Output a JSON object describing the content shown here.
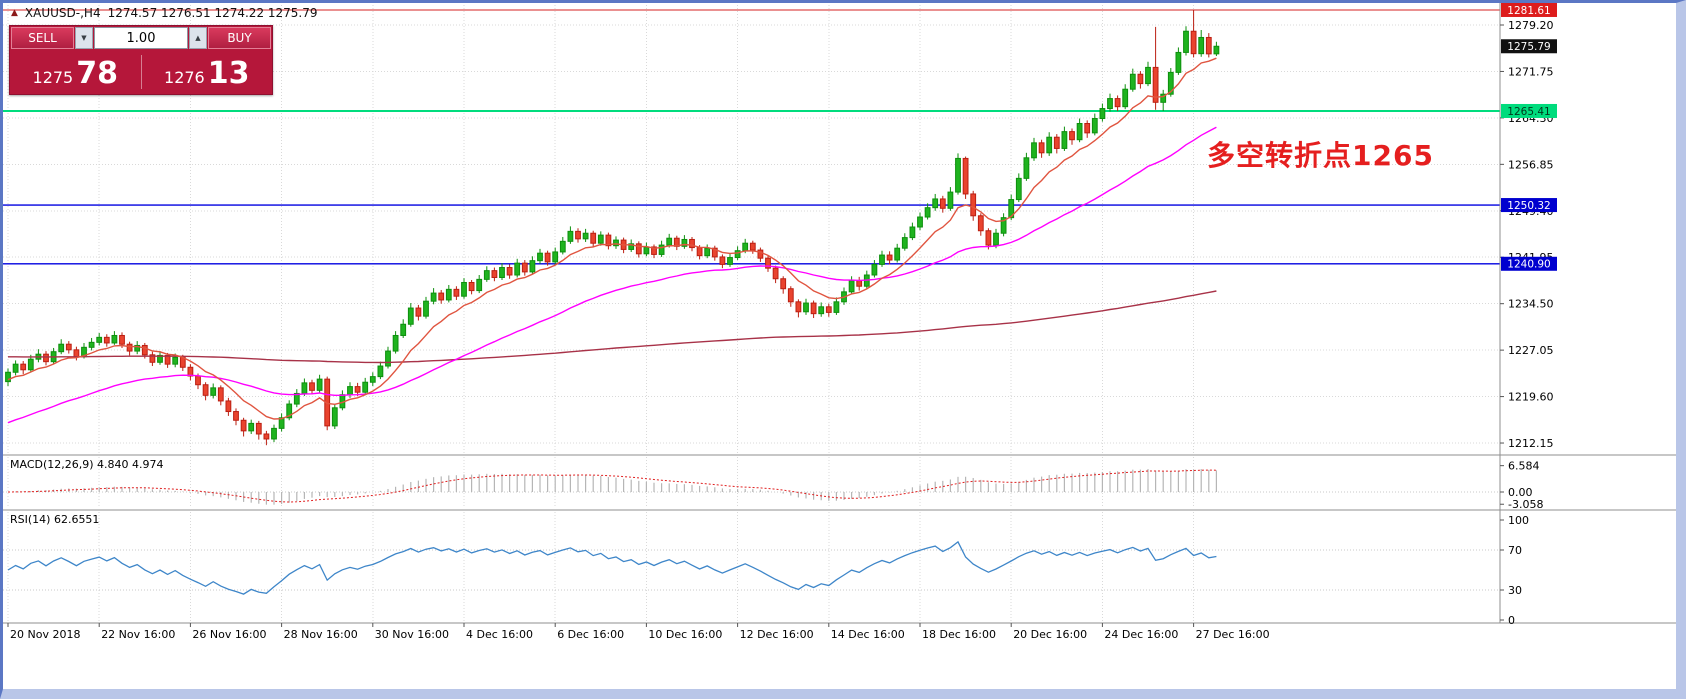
{
  "header": {
    "symbol_timeframe": "XAUUSD-,H4",
    "ohlc": "1274.57 1276.51 1274.22 1275.79"
  },
  "trade_panel": {
    "sell_label": "SELL",
    "buy_label": "BUY",
    "lot_value": "1.00",
    "spinner_down": "▼",
    "spinner_up": "▲",
    "sell_price_big": "1275",
    "sell_price_pips": "78",
    "buy_price_big": "1276",
    "buy_price_pips": "13",
    "bg_color": "#b5173a"
  },
  "annotation": {
    "text": "多空转折点1265",
    "color": "#e51f1f"
  },
  "price_axis": [
    "1279.20",
    "1271.75",
    "1264.30",
    "1256.85",
    "1249.40",
    "1241.95",
    "1234.50",
    "1227.05",
    "1219.60",
    "1212.15"
  ],
  "time_axis": [
    "20 Nov 2018",
    "22 Nov 16:00",
    "26 Nov 16:00",
    "28 Nov 16:00",
    "30 Nov 16:00",
    "4 Dec 16:00",
    "6 Dec 16:00",
    "10 Dec 16:00",
    "12 Dec 16:00",
    "14 Dec 16:00",
    "18 Dec 16:00",
    "20 Dec 16:00",
    "24 Dec 16:00",
    "27 Dec 16:00"
  ],
  "price_tags": [
    {
      "label": "1281.61",
      "price": 1281.61,
      "bg": "#dd1c1c",
      "fg": "#ffffff"
    },
    {
      "label": "1275.79",
      "price": 1275.79,
      "bg": "#111111",
      "fg": "#ffffff"
    },
    {
      "label": "1265.41",
      "price": 1265.41,
      "bg": "#00dc7d",
      "fg": "#00391d"
    },
    {
      "label": "1250.32",
      "price": 1250.32,
      "bg": "#0000cf",
      "fg": "#ffffff"
    },
    {
      "label": "1240.90",
      "price": 1240.9,
      "bg": "#0000cf",
      "fg": "#ffffff"
    }
  ],
  "macd_panel": {
    "label": "MACD(12,26,9) 4.840 4.974",
    "axis": [
      "6.584",
      "0.00",
      "-3.058"
    ]
  },
  "rsi_panel": {
    "label": "RSI(14) 62.6551",
    "axis": [
      "100",
      "70",
      "30",
      "0"
    ]
  },
  "chart_data": {
    "type": "candlestick",
    "symbol": "XAUUSD-",
    "timeframe": "H4",
    "current_bar": {
      "open": 1274.57,
      "high": 1276.51,
      "low": 1274.22,
      "close": 1275.79
    },
    "levels": [
      {
        "price": 1281.61,
        "color": "#d42020",
        "width": 1
      },
      {
        "price": 1265.41,
        "color": "#00dc7d",
        "width": 2
      },
      {
        "price": 1250.32,
        "color": "#0000e0",
        "width": 1.4
      },
      {
        "price": 1240.9,
        "color": "#0000e0",
        "width": 1.4
      }
    ],
    "moving_averages": [
      {
        "period": 9,
        "color": "#e05540",
        "seed": 1222
      },
      {
        "period": 40,
        "color": "#ff00ff",
        "seed": 1215
      },
      {
        "period": 350,
        "color": "#a83248",
        "seed": 1226
      }
    ],
    "macd": {
      "fast": 12,
      "slow": 26,
      "signal": 9,
      "value": 4.84,
      "signal_value": 4.974,
      "axis_max": 6.584,
      "axis_min": -3.058
    },
    "rsi": {
      "period": 14,
      "value": 62.6551,
      "levels": [
        70,
        30
      ]
    },
    "colors": {
      "up": "#0d8f0d",
      "up_fill": "#1fb31f",
      "down": "#bb1f12",
      "down_fill": "#e9432e",
      "grid": "#d9d9d9",
      "macd_hist": "#b6b6b6",
      "macd_signal": "#e02020",
      "rsi_line": "#3e86c9"
    },
    "y_range": [
      1209.5,
      1282.5
    ],
    "candles": [
      [
        1222.0,
        1224.1,
        1221.3,
        1223.5
      ],
      [
        1223.5,
        1225.4,
        1223.0,
        1224.8
      ],
      [
        1224.8,
        1225.3,
        1223.2,
        1223.9
      ],
      [
        1223.9,
        1226.3,
        1223.5,
        1225.6
      ],
      [
        1225.6,
        1227.2,
        1225.1,
        1226.4
      ],
      [
        1226.4,
        1226.9,
        1224.6,
        1225.2
      ],
      [
        1225.2,
        1227.4,
        1224.9,
        1226.8
      ],
      [
        1226.8,
        1228.8,
        1226.4,
        1228.0
      ],
      [
        1228.0,
        1228.5,
        1226.5,
        1227.1
      ],
      [
        1227.1,
        1227.6,
        1225.4,
        1226.0
      ],
      [
        1226.0,
        1228.2,
        1225.7,
        1227.5
      ],
      [
        1227.5,
        1229.0,
        1227.0,
        1228.3
      ],
      [
        1228.3,
        1229.8,
        1227.8,
        1229.1
      ],
      [
        1229.1,
        1229.6,
        1227.6,
        1228.2
      ],
      [
        1228.2,
        1230.1,
        1227.9,
        1229.4
      ],
      [
        1229.4,
        1229.9,
        1227.4,
        1228.0
      ],
      [
        1228.0,
        1228.4,
        1226.2,
        1226.9
      ],
      [
        1226.9,
        1228.5,
        1226.4,
        1227.8
      ],
      [
        1227.8,
        1228.2,
        1225.7,
        1226.3
      ],
      [
        1226.3,
        1226.8,
        1224.5,
        1225.1
      ],
      [
        1225.1,
        1226.9,
        1224.7,
        1226.2
      ],
      [
        1226.2,
        1226.6,
        1224.2,
        1224.8
      ],
      [
        1224.8,
        1226.5,
        1224.3,
        1225.9
      ],
      [
        1225.9,
        1226.3,
        1223.7,
        1224.3
      ],
      [
        1224.3,
        1224.8,
        1222.2,
        1222.9
      ],
      [
        1222.9,
        1223.3,
        1220.8,
        1221.5
      ],
      [
        1221.5,
        1221.9,
        1219.0,
        1219.8
      ],
      [
        1219.8,
        1221.7,
        1219.3,
        1221.0
      ],
      [
        1221.0,
        1221.4,
        1218.2,
        1218.9
      ],
      [
        1218.9,
        1219.4,
        1216.5,
        1217.2
      ],
      [
        1217.2,
        1217.7,
        1215.0,
        1215.8
      ],
      [
        1215.8,
        1216.2,
        1213.2,
        1214.1
      ],
      [
        1214.1,
        1215.9,
        1213.6,
        1215.3
      ],
      [
        1215.3,
        1215.7,
        1212.7,
        1213.6
      ],
      [
        1213.6,
        1214.1,
        1211.8,
        1212.8
      ],
      [
        1212.8,
        1215.1,
        1212.3,
        1214.5
      ],
      [
        1214.5,
        1216.9,
        1214.0,
        1216.2
      ],
      [
        1216.2,
        1219.0,
        1215.8,
        1218.4
      ],
      [
        1218.4,
        1220.8,
        1217.9,
        1220.1
      ],
      [
        1220.1,
        1222.5,
        1219.7,
        1221.8
      ],
      [
        1221.8,
        1222.3,
        1220.0,
        1220.6
      ],
      [
        1220.6,
        1223.1,
        1220.2,
        1222.4
      ],
      [
        1222.4,
        1222.8,
        1214.2,
        1214.9
      ],
      [
        1214.9,
        1218.4,
        1214.4,
        1217.8
      ],
      [
        1217.8,
        1220.6,
        1217.4,
        1219.9
      ],
      [
        1219.9,
        1221.9,
        1219.4,
        1221.2
      ],
      [
        1221.2,
        1221.8,
        1219.7,
        1220.3
      ],
      [
        1220.3,
        1222.6,
        1219.9,
        1221.9
      ],
      [
        1221.9,
        1223.5,
        1221.3,
        1222.8
      ],
      [
        1222.8,
        1225.2,
        1222.4,
        1224.5
      ],
      [
        1224.5,
        1227.6,
        1224.1,
        1226.9
      ],
      [
        1226.9,
        1230.1,
        1226.5,
        1229.4
      ],
      [
        1229.4,
        1232.0,
        1229.0,
        1231.2
      ],
      [
        1231.2,
        1234.6,
        1230.8,
        1233.8
      ],
      [
        1233.8,
        1234.3,
        1231.8,
        1232.5
      ],
      [
        1232.5,
        1235.6,
        1232.1,
        1234.9
      ],
      [
        1234.9,
        1237.0,
        1234.4,
        1236.2
      ],
      [
        1236.2,
        1236.7,
        1234.5,
        1235.1
      ],
      [
        1235.1,
        1237.5,
        1234.7,
        1236.8
      ],
      [
        1236.8,
        1237.3,
        1235.1,
        1235.7
      ],
      [
        1235.7,
        1238.6,
        1235.3,
        1237.9
      ],
      [
        1237.9,
        1238.3,
        1236.0,
        1236.6
      ],
      [
        1236.6,
        1239.1,
        1236.2,
        1238.4
      ],
      [
        1238.4,
        1240.5,
        1238.0,
        1239.8
      ],
      [
        1239.8,
        1240.3,
        1238.1,
        1238.7
      ],
      [
        1238.7,
        1241.0,
        1238.3,
        1240.3
      ],
      [
        1240.3,
        1240.8,
        1238.5,
        1239.1
      ],
      [
        1239.1,
        1241.7,
        1238.7,
        1241.0
      ],
      [
        1241.0,
        1241.5,
        1239.0,
        1239.6
      ],
      [
        1239.6,
        1242.1,
        1239.2,
        1241.4
      ],
      [
        1241.4,
        1243.3,
        1240.9,
        1242.6
      ],
      [
        1242.6,
        1243.0,
        1240.6,
        1241.2
      ],
      [
        1241.2,
        1243.5,
        1240.8,
        1242.8
      ],
      [
        1242.8,
        1245.2,
        1242.4,
        1244.5
      ],
      [
        1244.5,
        1246.9,
        1244.1,
        1246.1
      ],
      [
        1246.1,
        1246.6,
        1244.3,
        1244.9
      ],
      [
        1244.9,
        1246.5,
        1244.4,
        1245.8
      ],
      [
        1245.8,
        1246.2,
        1243.6,
        1244.2
      ],
      [
        1244.2,
        1246.1,
        1243.8,
        1245.5
      ],
      [
        1245.5,
        1245.9,
        1243.2,
        1243.8
      ],
      [
        1243.8,
        1245.3,
        1243.3,
        1244.7
      ],
      [
        1244.7,
        1245.1,
        1242.6,
        1243.2
      ],
      [
        1243.2,
        1244.8,
        1242.8,
        1244.1
      ],
      [
        1244.1,
        1244.5,
        1241.9,
        1242.5
      ],
      [
        1242.5,
        1244.3,
        1242.1,
        1243.6
      ],
      [
        1243.6,
        1244.0,
        1241.8,
        1242.4
      ],
      [
        1242.4,
        1244.6,
        1242.0,
        1243.9
      ],
      [
        1243.9,
        1245.7,
        1243.5,
        1245.0
      ],
      [
        1245.0,
        1245.4,
        1243.1,
        1243.7
      ],
      [
        1243.7,
        1245.5,
        1243.3,
        1244.8
      ],
      [
        1244.8,
        1245.2,
        1242.9,
        1243.5
      ],
      [
        1243.5,
        1243.9,
        1241.6,
        1242.2
      ],
      [
        1242.2,
        1244.0,
        1241.8,
        1243.4
      ],
      [
        1243.4,
        1243.8,
        1241.4,
        1242.0
      ],
      [
        1242.0,
        1242.4,
        1240.2,
        1240.8
      ],
      [
        1240.8,
        1242.6,
        1240.4,
        1241.9
      ],
      [
        1241.9,
        1243.7,
        1241.5,
        1243.0
      ],
      [
        1243.0,
        1244.9,
        1242.6,
        1244.2
      ],
      [
        1244.2,
        1244.6,
        1242.5,
        1243.1
      ],
      [
        1243.1,
        1243.5,
        1241.2,
        1241.8
      ],
      [
        1241.8,
        1242.2,
        1239.6,
        1240.2
      ],
      [
        1240.2,
        1240.6,
        1237.8,
        1238.5
      ],
      [
        1238.5,
        1238.9,
        1236.1,
        1236.9
      ],
      [
        1236.9,
        1237.3,
        1234.0,
        1234.8
      ],
      [
        1234.8,
        1235.2,
        1232.3,
        1233.2
      ],
      [
        1233.2,
        1235.3,
        1232.7,
        1234.6
      ],
      [
        1234.6,
        1235.0,
        1232.2,
        1232.9
      ],
      [
        1232.9,
        1234.7,
        1232.4,
        1234.0
      ],
      [
        1234.0,
        1234.5,
        1232.4,
        1233.1
      ],
      [
        1233.1,
        1235.5,
        1232.7,
        1234.8
      ],
      [
        1234.8,
        1237.1,
        1234.3,
        1236.4
      ],
      [
        1236.4,
        1238.9,
        1236.0,
        1238.2
      ],
      [
        1238.2,
        1238.8,
        1236.6,
        1237.3
      ],
      [
        1237.3,
        1239.8,
        1236.9,
        1239.1
      ],
      [
        1239.1,
        1241.5,
        1238.7,
        1240.8
      ],
      [
        1240.8,
        1243.0,
        1240.4,
        1242.3
      ],
      [
        1242.3,
        1242.9,
        1240.8,
        1241.5
      ],
      [
        1241.5,
        1244.1,
        1241.1,
        1243.4
      ],
      [
        1243.4,
        1245.8,
        1243.0,
        1245.1
      ],
      [
        1245.1,
        1247.5,
        1244.7,
        1246.8
      ],
      [
        1246.8,
        1249.1,
        1246.3,
        1248.4
      ],
      [
        1248.4,
        1250.6,
        1248.0,
        1249.9
      ],
      [
        1249.9,
        1252.1,
        1249.4,
        1251.3
      ],
      [
        1251.3,
        1251.8,
        1249.1,
        1249.8
      ],
      [
        1249.8,
        1253.2,
        1249.4,
        1252.4
      ],
      [
        1252.4,
        1258.6,
        1252.0,
        1257.8
      ],
      [
        1257.8,
        1258.1,
        1251.3,
        1252.1
      ],
      [
        1252.1,
        1252.6,
        1247.8,
        1248.6
      ],
      [
        1248.6,
        1249.0,
        1245.4,
        1246.2
      ],
      [
        1246.2,
        1246.6,
        1243.2,
        1243.9
      ],
      [
        1243.9,
        1246.5,
        1243.4,
        1245.8
      ],
      [
        1245.8,
        1249.0,
        1245.3,
        1248.3
      ],
      [
        1248.3,
        1252.0,
        1247.9,
        1251.2
      ],
      [
        1251.2,
        1255.4,
        1250.8,
        1254.6
      ],
      [
        1254.6,
        1258.7,
        1254.2,
        1257.9
      ],
      [
        1257.9,
        1261.1,
        1257.4,
        1260.3
      ],
      [
        1260.3,
        1260.8,
        1257.9,
        1258.7
      ],
      [
        1258.7,
        1262.0,
        1258.2,
        1261.2
      ],
      [
        1261.2,
        1261.7,
        1258.6,
        1259.4
      ],
      [
        1259.4,
        1262.9,
        1259.0,
        1262.1
      ],
      [
        1262.1,
        1262.6,
        1260.0,
        1260.8
      ],
      [
        1260.8,
        1264.2,
        1260.4,
        1263.4
      ],
      [
        1263.4,
        1263.9,
        1261.1,
        1261.9
      ],
      [
        1261.9,
        1265.0,
        1261.5,
        1264.2
      ],
      [
        1264.2,
        1266.6,
        1263.7,
        1265.8
      ],
      [
        1265.8,
        1268.2,
        1265.3,
        1267.4
      ],
      [
        1267.4,
        1267.9,
        1265.4,
        1266.1
      ],
      [
        1266.1,
        1269.7,
        1265.7,
        1268.9
      ],
      [
        1268.9,
        1272.2,
        1268.5,
        1271.3
      ],
      [
        1271.3,
        1271.8,
        1269.0,
        1269.8
      ],
      [
        1269.8,
        1273.3,
        1269.4,
        1272.4
      ],
      [
        1272.4,
        1278.9,
        1265.6,
        1266.8
      ],
      [
        1266.8,
        1268.8,
        1265.4,
        1268.1
      ],
      [
        1268.1,
        1272.3,
        1267.7,
        1271.6
      ],
      [
        1271.6,
        1275.6,
        1271.2,
        1274.8
      ],
      [
        1274.8,
        1279.0,
        1274.3,
        1278.2
      ],
      [
        1278.2,
        1281.61,
        1274.0,
        1274.6
      ],
      [
        1274.6,
        1278.4,
        1274.1,
        1277.2
      ],
      [
        1277.2,
        1277.9,
        1274.0,
        1274.57
      ],
      [
        1274.57,
        1276.51,
        1274.22,
        1275.79
      ]
    ]
  }
}
